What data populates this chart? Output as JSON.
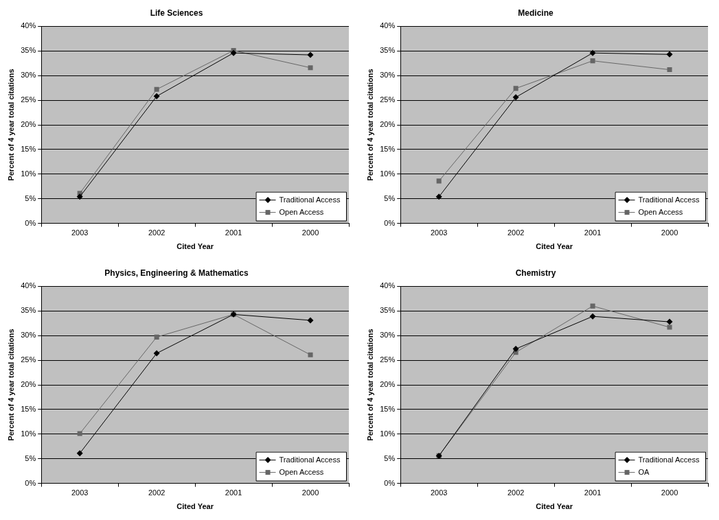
{
  "chart_data": [
    {
      "type": "line",
      "title": "Life Sciences",
      "xlabel": "Cited Year",
      "ylabel": "Percent of 4 year total citations",
      "categories": [
        "2003",
        "2002",
        "2001",
        "2000"
      ],
      "series": [
        {
          "name": "Traditional Access",
          "color": "#000000",
          "marker": "diamond",
          "values": [
            5.4,
            25.8,
            34.6,
            34.2
          ]
        },
        {
          "name": "Open Access",
          "color": "#666666",
          "marker": "square",
          "values": [
            6.1,
            27.2,
            35.1,
            31.6
          ]
        }
      ],
      "ylim": [
        0,
        40
      ],
      "yticks": [
        {
          "value": 0,
          "label": "0%"
        },
        {
          "value": 5,
          "label": "5%"
        },
        {
          "value": 10,
          "label": "10%"
        },
        {
          "value": 15,
          "label": "15%"
        },
        {
          "value": 20,
          "label": "20%"
        },
        {
          "value": 25,
          "label": "25%"
        },
        {
          "value": 30,
          "label": "30%"
        },
        {
          "value": 35,
          "label": "35%"
        },
        {
          "value": 40,
          "label": "40%"
        }
      ],
      "grid": "y",
      "legend": "bottom right"
    },
    {
      "type": "line",
      "title": "Medicine",
      "xlabel": "Cited Year",
      "ylabel": "Percent of 4 year total citations",
      "categories": [
        "2003",
        "2002",
        "2001",
        "2000"
      ],
      "series": [
        {
          "name": "Traditional Access",
          "color": "#000000",
          "marker": "diamond",
          "values": [
            5.4,
            25.6,
            34.6,
            34.3
          ]
        },
        {
          "name": "Open Access",
          "color": "#666666",
          "marker": "square",
          "values": [
            8.6,
            27.4,
            33.0,
            31.2
          ]
        }
      ],
      "ylim": [
        0,
        40
      ],
      "yticks": [
        {
          "value": 0,
          "label": "0%"
        },
        {
          "value": 5,
          "label": "5%"
        },
        {
          "value": 10,
          "label": "10%"
        },
        {
          "value": 15,
          "label": "15%"
        },
        {
          "value": 20,
          "label": "20%"
        },
        {
          "value": 25,
          "label": "25%"
        },
        {
          "value": 30,
          "label": "30%"
        },
        {
          "value": 35,
          "label": "35%"
        },
        {
          "value": 40,
          "label": "40%"
        }
      ],
      "grid": "y",
      "legend": "bottom right"
    },
    {
      "type": "line",
      "title": "Physics, Engineering & Mathematics",
      "xlabel": "Cited Year",
      "ylabel": "Percent of 4 year total citations",
      "categories": [
        "2003",
        "2002",
        "2001",
        "2000"
      ],
      "series": [
        {
          "name": "Traditional Access",
          "color": "#000000",
          "marker": "diamond",
          "values": [
            6.1,
            26.4,
            34.3,
            33.1
          ]
        },
        {
          "name": "Open Access",
          "color": "#666666",
          "marker": "square",
          "values": [
            10.1,
            29.7,
            34.3,
            26.1
          ]
        }
      ],
      "ylim": [
        0,
        40
      ],
      "yticks": [
        {
          "value": 0,
          "label": "0%"
        },
        {
          "value": 5,
          "label": "5%"
        },
        {
          "value": 10,
          "label": "10%"
        },
        {
          "value": 15,
          "label": "15%"
        },
        {
          "value": 20,
          "label": "20%"
        },
        {
          "value": 25,
          "label": "25%"
        },
        {
          "value": 30,
          "label": "30%"
        },
        {
          "value": 35,
          "label": "35%"
        },
        {
          "value": 40,
          "label": "40%"
        }
      ],
      "grid": "y",
      "legend": "bottom right"
    },
    {
      "type": "line",
      "title": "Chemistry",
      "xlabel": "Cited Year",
      "ylabel": "Percent of 4 year total citations",
      "categories": [
        "2003",
        "2002",
        "2001",
        "2000"
      ],
      "series": [
        {
          "name": "Traditional Access",
          "color": "#000000",
          "marker": "diamond",
          "values": [
            5.6,
            27.3,
            33.9,
            32.8
          ]
        },
        {
          "name": "OA",
          "color": "#666666",
          "marker": "square",
          "values": [
            5.6,
            26.6,
            36.0,
            31.7
          ]
        }
      ],
      "ylim": [
        0,
        40
      ],
      "yticks": [
        {
          "value": 0,
          "label": "0%"
        },
        {
          "value": 5,
          "label": "5%"
        },
        {
          "value": 10,
          "label": "10%"
        },
        {
          "value": 15,
          "label": "15%"
        },
        {
          "value": 20,
          "label": "20%"
        },
        {
          "value": 25,
          "label": "25%"
        },
        {
          "value": 30,
          "label": "30%"
        },
        {
          "value": 35,
          "label": "35%"
        },
        {
          "value": 40,
          "label": "40%"
        }
      ],
      "grid": "y",
      "legend": "bottom right"
    }
  ]
}
